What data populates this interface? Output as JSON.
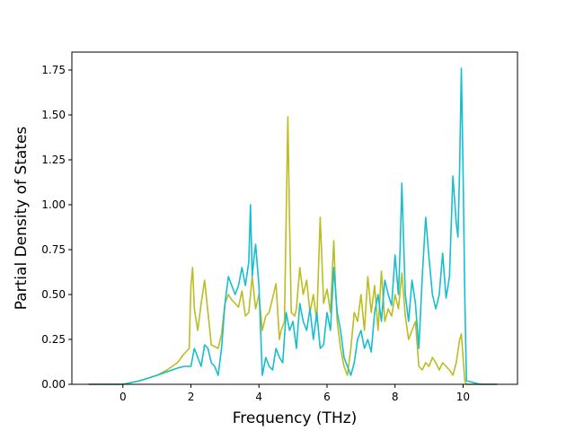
{
  "chart_data": {
    "type": "line",
    "title": "",
    "xlabel": "Frequency (THz)",
    "ylabel": "Partial Density of States",
    "xlim": [
      -1.5,
      11.6
    ],
    "ylim": [
      0,
      1.85
    ],
    "xticks": [
      0,
      2,
      4,
      6,
      8,
      10
    ],
    "xtick_labels": [
      "0",
      "2",
      "4",
      "6",
      "8",
      "10"
    ],
    "yticks": [
      0,
      0.25,
      0.5,
      0.75,
      1.0,
      1.25,
      1.5,
      1.75
    ],
    "ytick_labels": [
      "0.00",
      "0.25",
      "0.50",
      "0.75",
      "1.00",
      "1.25",
      "1.50",
      "1.75"
    ],
    "grid": false,
    "legend": "none",
    "series": [
      {
        "color": "#bcbd22",
        "x": [
          -1.0,
          -0.5,
          0.0,
          0.5,
          1.0,
          1.3,
          1.6,
          1.8,
          1.95,
          2.0,
          2.05,
          2.1,
          2.2,
          2.3,
          2.4,
          2.5,
          2.6,
          2.8,
          2.9,
          3.0,
          3.1,
          3.2,
          3.4,
          3.5,
          3.6,
          3.7,
          3.8,
          3.9,
          4.0,
          4.1,
          4.2,
          4.3,
          4.4,
          4.5,
          4.6,
          4.65,
          4.75,
          4.85,
          4.9,
          4.95,
          5.05,
          5.1,
          5.2,
          5.3,
          5.4,
          5.5,
          5.6,
          5.7,
          5.8,
          5.9,
          6.0,
          6.1,
          6.2,
          6.25,
          6.3,
          6.4,
          6.5,
          6.6,
          6.7,
          6.8,
          6.9,
          7.0,
          7.1,
          7.2,
          7.3,
          7.4,
          7.5,
          7.6,
          7.7,
          7.8,
          7.9,
          8.0,
          8.1,
          8.2,
          8.3,
          8.4,
          8.5,
          8.6,
          8.7,
          8.8,
          8.9,
          9.0,
          9.1,
          9.2,
          9.3,
          9.4,
          9.5,
          9.6,
          9.7,
          9.8,
          9.9,
          9.95,
          10.0,
          10.05,
          10.1,
          10.5,
          11.0
        ],
        "y": [
          0.0,
          0.0,
          0.0,
          0.02,
          0.05,
          0.08,
          0.12,
          0.17,
          0.2,
          0.55,
          0.65,
          0.42,
          0.3,
          0.45,
          0.58,
          0.4,
          0.22,
          0.2,
          0.28,
          0.45,
          0.5,
          0.47,
          0.43,
          0.52,
          0.38,
          0.4,
          0.6,
          0.42,
          0.5,
          0.3,
          0.38,
          0.4,
          0.48,
          0.56,
          0.25,
          0.3,
          0.35,
          1.49,
          0.9,
          0.4,
          0.38,
          0.42,
          0.65,
          0.5,
          0.58,
          0.4,
          0.5,
          0.35,
          0.93,
          0.45,
          0.53,
          0.4,
          0.8,
          0.55,
          0.35,
          0.2,
          0.1,
          0.05,
          0.2,
          0.4,
          0.35,
          0.5,
          0.3,
          0.6,
          0.4,
          0.55,
          0.3,
          0.63,
          0.35,
          0.42,
          0.38,
          0.5,
          0.42,
          0.62,
          0.38,
          0.25,
          0.3,
          0.35,
          0.1,
          0.08,
          0.12,
          0.1,
          0.15,
          0.12,
          0.08,
          0.12,
          0.1,
          0.08,
          0.05,
          0.12,
          0.25,
          0.28,
          0.15,
          0.02,
          0.0,
          0.0,
          0.0
        ]
      },
      {
        "color": "#17becf",
        "x": [
          -1.0,
          -0.5,
          0.0,
          0.5,
          1.0,
          1.3,
          1.6,
          1.8,
          2.0,
          2.1,
          2.2,
          2.3,
          2.4,
          2.5,
          2.6,
          2.7,
          2.8,
          2.9,
          3.0,
          3.1,
          3.2,
          3.3,
          3.4,
          3.5,
          3.6,
          3.7,
          3.75,
          3.8,
          3.85,
          3.9,
          4.0,
          4.1,
          4.2,
          4.3,
          4.4,
          4.5,
          4.6,
          4.7,
          4.8,
          4.9,
          5.0,
          5.1,
          5.2,
          5.3,
          5.4,
          5.5,
          5.6,
          5.7,
          5.8,
          5.9,
          6.0,
          6.1,
          6.2,
          6.3,
          6.4,
          6.5,
          6.6,
          6.7,
          6.8,
          6.9,
          7.0,
          7.1,
          7.2,
          7.3,
          7.4,
          7.5,
          7.6,
          7.7,
          7.8,
          7.9,
          8.0,
          8.1,
          8.15,
          8.2,
          8.25,
          8.3,
          8.4,
          8.5,
          8.6,
          8.7,
          8.8,
          8.9,
          9.0,
          9.1,
          9.2,
          9.3,
          9.4,
          9.5,
          9.6,
          9.7,
          9.8,
          9.85,
          9.9,
          9.95,
          10.0,
          10.05,
          10.1,
          10.5,
          11.0
        ],
        "y": [
          0.0,
          0.0,
          0.0,
          0.02,
          0.05,
          0.07,
          0.09,
          0.1,
          0.1,
          0.2,
          0.15,
          0.1,
          0.22,
          0.2,
          0.12,
          0.1,
          0.05,
          0.2,
          0.45,
          0.6,
          0.55,
          0.5,
          0.55,
          0.65,
          0.55,
          0.68,
          1.0,
          0.6,
          0.7,
          0.78,
          0.55,
          0.05,
          0.15,
          0.1,
          0.08,
          0.2,
          0.15,
          0.12,
          0.4,
          0.3,
          0.35,
          0.2,
          0.45,
          0.35,
          0.3,
          0.42,
          0.25,
          0.4,
          0.2,
          0.22,
          0.4,
          0.3,
          0.65,
          0.4,
          0.3,
          0.15,
          0.1,
          0.05,
          0.12,
          0.25,
          0.3,
          0.2,
          0.25,
          0.18,
          0.4,
          0.5,
          0.35,
          0.58,
          0.5,
          0.44,
          0.72,
          0.5,
          0.76,
          1.12,
          0.8,
          0.5,
          0.35,
          0.58,
          0.45,
          0.2,
          0.6,
          0.93,
          0.7,
          0.5,
          0.42,
          0.5,
          0.73,
          0.48,
          0.6,
          1.16,
          0.9,
          0.82,
          1.2,
          1.76,
          1.2,
          0.5,
          0.02,
          0.0,
          0.0
        ]
      }
    ]
  }
}
